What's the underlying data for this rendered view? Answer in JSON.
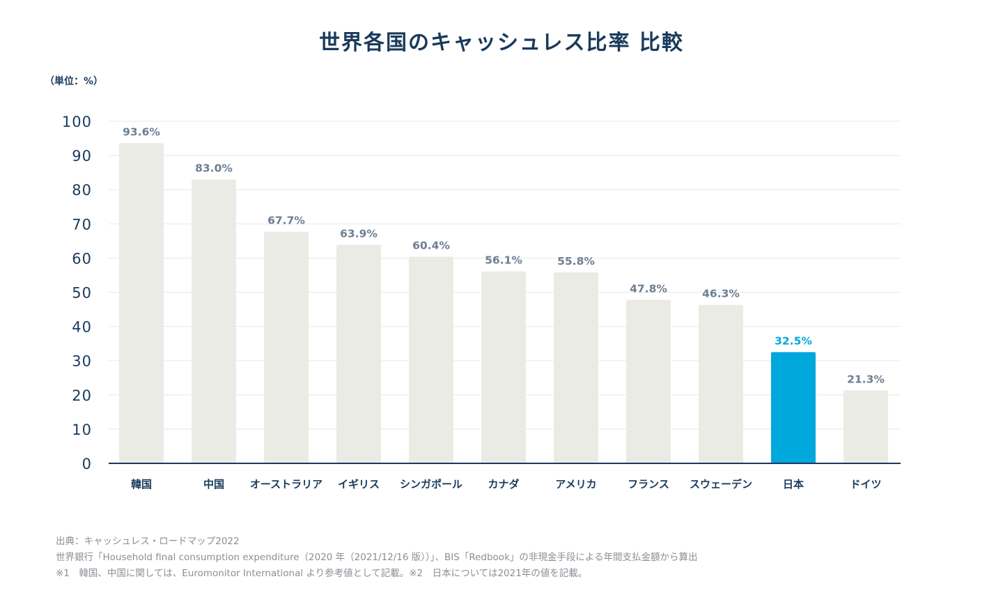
{
  "title": "世界各国のキャッシュレス比率 比較",
  "unit_label": "（単位：%）",
  "chart_data": {
    "type": "bar",
    "categories": [
      "韓国",
      "中国",
      "オーストラリア",
      "イギリス",
      "シンガポール",
      "カナダ",
      "アメリカ",
      "フランス",
      "スウェーデン",
      "日本",
      "ドイツ"
    ],
    "values": [
      93.6,
      83.0,
      67.7,
      63.9,
      60.4,
      56.1,
      55.8,
      47.8,
      46.3,
      32.5,
      21.3
    ],
    "value_labels": [
      "93.6%",
      "83.0%",
      "67.7%",
      "63.9%",
      "60.4%",
      "56.1%",
      "55.8%",
      "47.8%",
      "46.3%",
      "32.5%",
      "21.3%"
    ],
    "highlight_category": "日本",
    "ylim": [
      0,
      100
    ],
    "yticks": [
      0,
      10,
      20,
      30,
      40,
      50,
      60,
      70,
      80,
      90,
      100
    ],
    "grid": true,
    "legend": "none",
    "colors": {
      "bar": "#ebebe6",
      "highlight_bar": "#00a8dc",
      "value_label": "#6d7f93",
      "highlight_label": "#00a8dc",
      "axis": "#1a3a5c",
      "grid": "#e8e8e8"
    }
  },
  "notes": [
    "出典：キャッシュレス・ロードマップ2022",
    "世界銀行「Household final consumption expenditure（2020 年（2021/12/16 版））」、BIS「Redbook」の非現金手段による年間支払金額から算出",
    "※1　韓国、中国に関しては、Euromonitor International より参考値として記載。※2　日本については2021年の値を記載。"
  ]
}
